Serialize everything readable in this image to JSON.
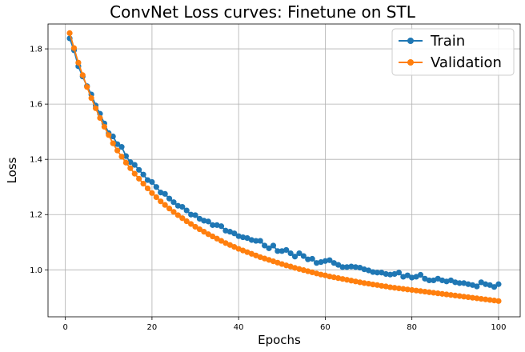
{
  "chart_data": {
    "type": "line",
    "title": "ConvNet Loss curves: Finetune on STL",
    "xlabel": "Epochs",
    "ylabel": "Loss",
    "xlim": [
      -4,
      105
    ],
    "ylim": [
      0.83,
      1.89
    ],
    "xticks": [
      0,
      20,
      40,
      60,
      80,
      100
    ],
    "yticks": [
      1.0,
      1.2,
      1.4,
      1.6,
      1.8
    ],
    "xtick_labels": [
      "0",
      "20",
      "40",
      "60",
      "80",
      "100"
    ],
    "ytick_labels": [
      "1.0",
      "1.2",
      "1.4",
      "1.6",
      "1.8"
    ],
    "grid": true,
    "legend_position": "top-right",
    "x": [
      1,
      2,
      3,
      4,
      5,
      6,
      7,
      8,
      9,
      10,
      11,
      12,
      13,
      14,
      15,
      16,
      17,
      18,
      19,
      20,
      21,
      22,
      23,
      24,
      25,
      26,
      27,
      28,
      29,
      30,
      31,
      32,
      33,
      34,
      35,
      36,
      37,
      38,
      39,
      40,
      41,
      42,
      43,
      44,
      45,
      46,
      47,
      48,
      49,
      50,
      51,
      52,
      53,
      54,
      55,
      56,
      57,
      58,
      59,
      60,
      61,
      62,
      63,
      64,
      65,
      66,
      67,
      68,
      69,
      70,
      71,
      72,
      73,
      74,
      75,
      76,
      77,
      78,
      79,
      80,
      81,
      82,
      83,
      84,
      85,
      86,
      87,
      88,
      89,
      90,
      91,
      92,
      93,
      94,
      95,
      96,
      97,
      98,
      99,
      100
    ],
    "series": [
      {
        "name": "Train",
        "color": "#1f77b4",
        "values": [
          1.838,
          1.795,
          1.737,
          1.7,
          1.665,
          1.635,
          1.595,
          1.565,
          1.53,
          1.495,
          1.483,
          1.455,
          1.445,
          1.412,
          1.39,
          1.38,
          1.362,
          1.345,
          1.325,
          1.318,
          1.3,
          1.28,
          1.275,
          1.258,
          1.245,
          1.232,
          1.228,
          1.215,
          1.2,
          1.198,
          1.185,
          1.178,
          1.175,
          1.162,
          1.162,
          1.158,
          1.142,
          1.138,
          1.132,
          1.122,
          1.118,
          1.115,
          1.108,
          1.105,
          1.105,
          1.088,
          1.078,
          1.088,
          1.068,
          1.068,
          1.072,
          1.06,
          1.048,
          1.06,
          1.05,
          1.038,
          1.04,
          1.025,
          1.028,
          1.032,
          1.035,
          1.025,
          1.018,
          1.01,
          1.01,
          1.012,
          1.01,
          1.008,
          1.002,
          0.998,
          0.992,
          0.99,
          0.99,
          0.985,
          0.983,
          0.985,
          0.99,
          0.975,
          0.98,
          0.972,
          0.975,
          0.982,
          0.968,
          0.962,
          0.962,
          0.968,
          0.962,
          0.958,
          0.962,
          0.955,
          0.952,
          0.952,
          0.948,
          0.945,
          0.94,
          0.955,
          0.948,
          0.945,
          0.938,
          0.948
        ]
      },
      {
        "name": "Validation",
        "color": "#ff7f0e",
        "values": [
          1.857,
          1.803,
          1.75,
          1.705,
          1.662,
          1.622,
          1.585,
          1.55,
          1.518,
          1.488,
          1.458,
          1.432,
          1.41,
          1.388,
          1.368,
          1.348,
          1.33,
          1.312,
          1.295,
          1.278,
          1.263,
          1.248,
          1.235,
          1.222,
          1.21,
          1.198,
          1.187,
          1.176,
          1.166,
          1.156,
          1.147,
          1.138,
          1.129,
          1.121,
          1.113,
          1.105,
          1.097,
          1.09,
          1.083,
          1.076,
          1.07,
          1.064,
          1.058,
          1.052,
          1.046,
          1.041,
          1.036,
          1.031,
          1.026,
          1.021,
          1.016,
          1.012,
          1.007,
          1.003,
          0.999,
          0.995,
          0.991,
          0.987,
          0.983,
          0.98,
          0.976,
          0.973,
          0.97,
          0.967,
          0.964,
          0.961,
          0.958,
          0.955,
          0.952,
          0.95,
          0.947,
          0.945,
          0.942,
          0.94,
          0.937,
          0.935,
          0.933,
          0.931,
          0.929,
          0.927,
          0.925,
          0.923,
          0.921,
          0.919,
          0.917,
          0.915,
          0.913,
          0.911,
          0.909,
          0.907,
          0.905,
          0.903,
          0.901,
          0.899,
          0.897,
          0.895,
          0.893,
          0.891,
          0.889,
          0.887
        ]
      }
    ]
  }
}
